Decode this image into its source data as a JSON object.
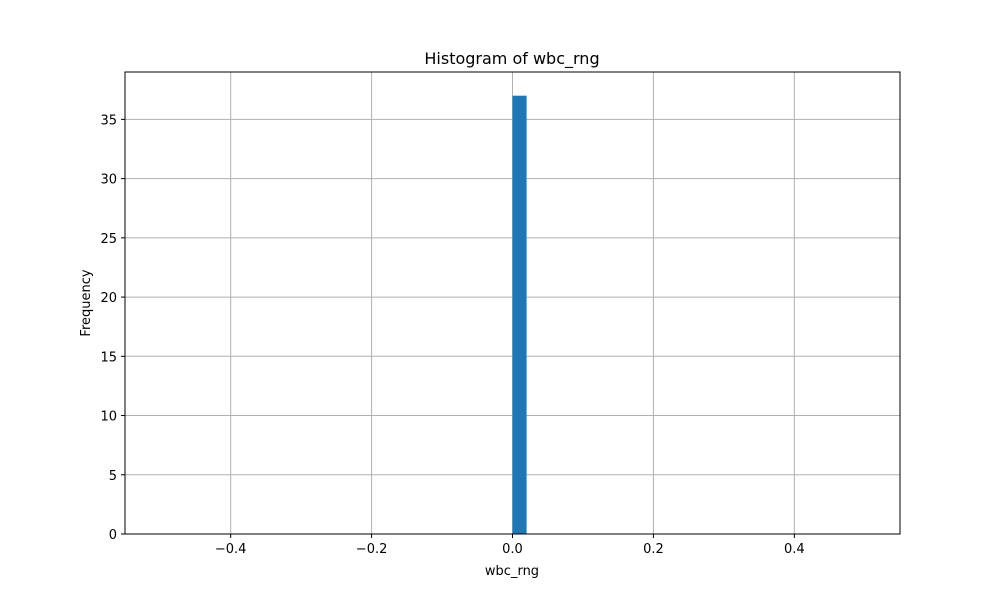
{
  "chart_data": {
    "type": "bar",
    "title": "Histogram of wbc_rng",
    "xlabel": "wbc_rng",
    "ylabel": "Frequency",
    "xlim": [
      -0.55,
      0.55
    ],
    "ylim": [
      0,
      39
    ],
    "grid": true,
    "bins": [
      {
        "x0": 0.0,
        "x1": 0.02,
        "count": 37
      }
    ],
    "xticks": [
      -0.4,
      -0.2,
      0.0,
      0.2,
      0.4
    ],
    "xtick_labels": [
      "−0.4",
      "−0.2",
      "0.0",
      "0.2",
      "0.4"
    ],
    "yticks": [
      0,
      5,
      10,
      15,
      20,
      25,
      30,
      35
    ],
    "ytick_labels": [
      "0",
      "5",
      "10",
      "15",
      "20",
      "25",
      "30",
      "35"
    ],
    "colors": {
      "bar": "#1f77b4",
      "grid": "#b0b0b0",
      "axes": "#000000"
    }
  }
}
